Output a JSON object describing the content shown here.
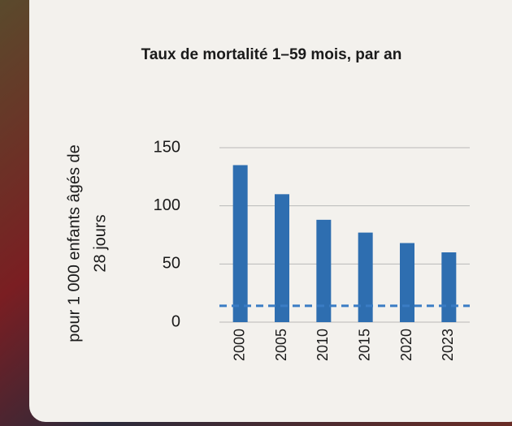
{
  "chart_data": {
    "type": "bar",
    "title": "Taux de mortalité 1–59 mois, par an",
    "y_label": [
      "pour 1 000 enfants âgés de",
      "28 jours"
    ],
    "categories": [
      "2000",
      "2005",
      "2010",
      "2015",
      "2020",
      "2023"
    ],
    "values": [
      135,
      110,
      88,
      77,
      68,
      60
    ],
    "color": "#2e6eb0",
    "reference_line": {
      "value": 14,
      "color": "#3a7cc4",
      "style": "dashed"
    },
    "ylim": [
      0,
      150
    ],
    "yticks": [
      0,
      50,
      100,
      150
    ],
    "grid": true
  }
}
